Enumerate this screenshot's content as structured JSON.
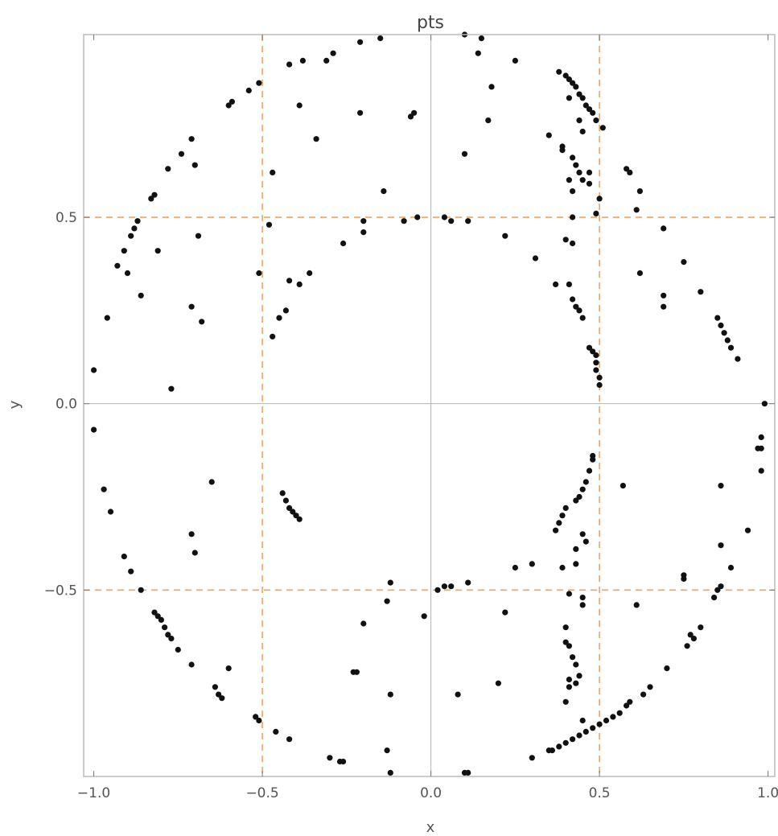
{
  "chart_data": {
    "type": "scatter",
    "title": "pts",
    "xlabel": "x",
    "ylabel": "y",
    "xlim": [
      -1.03,
      1.02
    ],
    "ylim": [
      -1.0,
      0.99
    ],
    "xticks": [
      -1.0,
      -0.5,
      0.0,
      0.5,
      1.0
    ],
    "xtick_labels": [
      "−1.0",
      "−0.5",
      "0.0",
      "0.5",
      "1.0"
    ],
    "yticks": [
      -0.5,
      0.0,
      0.5
    ],
    "ytick_labels": [
      "−0.5",
      "0.0",
      "0.5"
    ],
    "grid": false,
    "zero_lines": true,
    "reference_lines": {
      "x": [
        -0.5,
        0.5
      ],
      "y": [
        -0.5,
        0.5
      ],
      "color": "#f5a25d",
      "style": "dashed"
    },
    "marker_color": "#111111",
    "series": [
      {
        "points": [
          [
            0.1,
            0.99
          ],
          [
            0.15,
            0.98
          ],
          [
            -0.15,
            0.98
          ],
          [
            -0.21,
            0.97
          ],
          [
            0.14,
            0.94
          ],
          [
            -0.29,
            0.94
          ],
          [
            -0.31,
            0.92
          ],
          [
            -0.38,
            0.92
          ],
          [
            -0.42,
            0.91
          ],
          [
            0.25,
            0.92
          ],
          [
            -0.51,
            0.86
          ],
          [
            -0.54,
            0.84
          ],
          [
            -0.59,
            0.81
          ],
          [
            -0.6,
            0.8
          ],
          [
            0.18,
            0.85
          ],
          [
            -0.39,
            0.8
          ],
          [
            -0.21,
            0.78
          ],
          [
            -0.05,
            0.78
          ],
          [
            -0.06,
            0.77
          ],
          [
            0.17,
            0.76
          ],
          [
            -0.71,
            0.71
          ],
          [
            -0.74,
            0.67
          ],
          [
            -0.78,
            0.63
          ],
          [
            -0.7,
            0.64
          ],
          [
            0.1,
            0.67
          ],
          [
            -0.34,
            0.71
          ],
          [
            -0.47,
            0.62
          ],
          [
            -0.82,
            0.56
          ],
          [
            -0.83,
            0.55
          ],
          [
            -0.14,
            0.57
          ],
          [
            -0.88,
            0.47
          ],
          [
            -0.87,
            0.49
          ],
          [
            -0.89,
            0.45
          ],
          [
            -0.91,
            0.41
          ],
          [
            -0.93,
            0.37
          ],
          [
            -0.9,
            0.35
          ],
          [
            -0.81,
            0.41
          ],
          [
            -0.69,
            0.45
          ],
          [
            -0.48,
            0.48
          ],
          [
            -0.2,
            0.46
          ],
          [
            -0.2,
            0.49
          ],
          [
            -0.08,
            0.49
          ],
          [
            -0.04,
            0.5
          ],
          [
            0.04,
            0.5
          ],
          [
            0.06,
            0.49
          ],
          [
            0.11,
            0.49
          ],
          [
            0.22,
            0.45
          ],
          [
            -0.26,
            0.43
          ],
          [
            -0.51,
            0.35
          ],
          [
            -0.36,
            0.35
          ],
          [
            -0.42,
            0.33
          ],
          [
            -0.39,
            0.32
          ],
          [
            -0.86,
            0.29
          ],
          [
            -0.96,
            0.23
          ],
          [
            -0.71,
            0.26
          ],
          [
            -0.68,
            0.22
          ],
          [
            -0.43,
            0.25
          ],
          [
            -0.45,
            0.23
          ],
          [
            -0.47,
            0.18
          ],
          [
            -1.0,
            0.09
          ],
          [
            -0.77,
            0.04
          ],
          [
            0.31,
            0.39
          ],
          [
            0.38,
            0.89
          ],
          [
            0.4,
            0.88
          ],
          [
            0.41,
            0.87
          ],
          [
            0.42,
            0.86
          ],
          [
            0.43,
            0.85
          ],
          [
            0.44,
            0.83
          ],
          [
            0.45,
            0.82
          ],
          [
            0.46,
            0.8
          ],
          [
            0.47,
            0.79
          ],
          [
            0.48,
            0.78
          ],
          [
            0.49,
            0.76
          ],
          [
            0.51,
            0.74
          ],
          [
            0.41,
            0.82
          ],
          [
            0.44,
            0.76
          ],
          [
            0.35,
            0.72
          ],
          [
            0.39,
            0.69
          ],
          [
            0.45,
            0.73
          ],
          [
            0.39,
            0.68
          ],
          [
            0.42,
            0.66
          ],
          [
            0.43,
            0.64
          ],
          [
            0.44,
            0.62
          ],
          [
            0.45,
            0.6
          ],
          [
            0.47,
            0.62
          ],
          [
            0.47,
            0.59
          ],
          [
            0.41,
            0.6
          ],
          [
            0.42,
            0.57
          ],
          [
            0.5,
            0.55
          ],
          [
            0.49,
            0.51
          ],
          [
            0.42,
            0.5
          ],
          [
            0.4,
            0.44
          ],
          [
            0.42,
            0.43
          ],
          [
            0.58,
            0.63
          ],
          [
            0.59,
            0.62
          ],
          [
            0.62,
            0.57
          ],
          [
            0.61,
            0.52
          ],
          [
            0.69,
            0.47
          ],
          [
            0.62,
            0.35
          ],
          [
            0.75,
            0.38
          ],
          [
            0.8,
            0.3
          ],
          [
            0.69,
            0.29
          ],
          [
            0.69,
            0.26
          ],
          [
            0.37,
            0.32
          ],
          [
            0.41,
            0.32
          ],
          [
            0.42,
            0.28
          ],
          [
            0.43,
            0.26
          ],
          [
            0.44,
            0.25
          ],
          [
            0.45,
            0.23
          ],
          [
            0.47,
            0.15
          ],
          [
            0.48,
            0.14
          ],
          [
            0.49,
            0.13
          ],
          [
            0.49,
            0.11
          ],
          [
            0.49,
            0.09
          ],
          [
            0.5,
            0.07
          ],
          [
            0.5,
            0.05
          ],
          [
            0.85,
            0.23
          ],
          [
            0.86,
            0.21
          ],
          [
            0.87,
            0.19
          ],
          [
            0.88,
            0.17
          ],
          [
            0.89,
            0.15
          ],
          [
            0.91,
            0.12
          ],
          [
            0.99,
            0.0
          ],
          [
            0.98,
            -0.09
          ],
          [
            0.98,
            -0.12
          ],
          [
            0.97,
            -0.12
          ],
          [
            0.98,
            -0.18
          ],
          [
            0.94,
            -0.34
          ],
          [
            0.86,
            -0.22
          ],
          [
            0.57,
            -0.22
          ],
          [
            0.48,
            -0.14
          ],
          [
            0.48,
            -0.15
          ],
          [
            0.47,
            -0.18
          ],
          [
            0.46,
            -0.21
          ],
          [
            0.45,
            -0.23
          ],
          [
            0.44,
            -0.25
          ],
          [
            0.43,
            -0.26
          ],
          [
            0.4,
            -0.28
          ],
          [
            0.39,
            -0.3
          ],
          [
            0.38,
            -0.32
          ],
          [
            0.37,
            -0.34
          ],
          [
            0.45,
            -0.35
          ],
          [
            0.46,
            -0.37
          ],
          [
            0.43,
            -0.39
          ],
          [
            0.39,
            -0.44
          ],
          [
            0.43,
            -0.43
          ],
          [
            0.3,
            -0.43
          ],
          [
            0.25,
            -0.44
          ],
          [
            0.41,
            -0.51
          ],
          [
            0.45,
            -0.52
          ],
          [
            0.45,
            -0.54
          ],
          [
            0.4,
            -0.6
          ],
          [
            0.4,
            -0.64
          ],
          [
            0.41,
            -0.65
          ],
          [
            0.42,
            -0.68
          ],
          [
            0.43,
            -0.7
          ],
          [
            0.44,
            -0.73
          ],
          [
            0.43,
            -0.75
          ],
          [
            0.41,
            -0.74
          ],
          [
            0.41,
            -0.76
          ],
          [
            0.4,
            -0.8
          ],
          [
            0.45,
            -0.85
          ],
          [
            0.61,
            -0.54
          ],
          [
            0.75,
            -0.46
          ],
          [
            0.75,
            -0.47
          ],
          [
            0.86,
            -0.38
          ],
          [
            0.89,
            -0.44
          ],
          [
            0.85,
            -0.5
          ],
          [
            0.86,
            -0.49
          ],
          [
            0.84,
            -0.52
          ],
          [
            0.8,
            -0.6
          ],
          [
            0.78,
            -0.63
          ],
          [
            0.76,
            -0.65
          ],
          [
            0.77,
            -0.62
          ],
          [
            0.7,
            -0.71
          ],
          [
            0.65,
            -0.76
          ],
          [
            0.63,
            -0.78
          ],
          [
            0.59,
            -0.8
          ],
          [
            0.58,
            -0.81
          ],
          [
            0.56,
            -0.83
          ],
          [
            0.54,
            -0.84
          ],
          [
            0.52,
            -0.85
          ],
          [
            0.5,
            -0.86
          ],
          [
            0.48,
            -0.87
          ],
          [
            0.46,
            -0.88
          ],
          [
            0.44,
            -0.89
          ],
          [
            0.42,
            -0.9
          ],
          [
            0.4,
            -0.91
          ],
          [
            0.38,
            -0.92
          ],
          [
            0.36,
            -0.93
          ],
          [
            0.35,
            -0.93
          ],
          [
            0.3,
            -0.95
          ],
          [
            0.2,
            -0.75
          ],
          [
            0.22,
            -0.56
          ],
          [
            0.11,
            -0.48
          ],
          [
            0.06,
            -0.49
          ],
          [
            0.04,
            -0.49
          ],
          [
            0.02,
            -0.5
          ],
          [
            -0.02,
            -0.57
          ],
          [
            0.08,
            -0.78
          ],
          [
            0.1,
            -0.99
          ],
          [
            0.11,
            -0.99
          ],
          [
            -0.12,
            -0.48
          ],
          [
            -0.13,
            -0.53
          ],
          [
            -0.12,
            -0.78
          ],
          [
            -0.13,
            -0.93
          ],
          [
            -0.12,
            -0.99
          ],
          [
            -0.2,
            -0.59
          ],
          [
            -0.23,
            -0.72
          ],
          [
            -0.22,
            -0.72
          ],
          [
            -0.26,
            -0.96
          ],
          [
            -0.27,
            -0.96
          ],
          [
            -0.3,
            -0.95
          ],
          [
            -0.42,
            -0.9
          ],
          [
            -0.46,
            -0.88
          ],
          [
            -0.51,
            -0.85
          ],
          [
            -0.52,
            -0.84
          ],
          [
            -0.6,
            -0.71
          ],
          [
            -0.62,
            -0.79
          ],
          [
            -0.63,
            -0.78
          ],
          [
            -0.64,
            -0.76
          ],
          [
            -0.65,
            -0.21
          ],
          [
            -0.7,
            -0.4
          ],
          [
            -0.71,
            -0.35
          ],
          [
            -0.71,
            -0.7
          ],
          [
            -0.75,
            -0.66
          ],
          [
            -0.77,
            -0.63
          ],
          [
            -0.78,
            -0.62
          ],
          [
            -0.79,
            -0.6
          ],
          [
            -0.8,
            -0.58
          ],
          [
            -0.81,
            -0.57
          ],
          [
            -0.82,
            -0.56
          ],
          [
            -0.86,
            -0.5
          ],
          [
            -0.89,
            -0.45
          ],
          [
            -0.91,
            -0.41
          ],
          [
            -0.95,
            -0.29
          ],
          [
            -0.97,
            -0.23
          ],
          [
            -1.0,
            -0.07
          ],
          [
            -0.44,
            -0.24
          ],
          [
            -0.43,
            -0.26
          ],
          [
            -0.42,
            -0.28
          ],
          [
            -0.41,
            -0.29
          ],
          [
            -0.4,
            -0.3
          ],
          [
            -0.39,
            -0.31
          ]
        ]
      }
    ]
  }
}
